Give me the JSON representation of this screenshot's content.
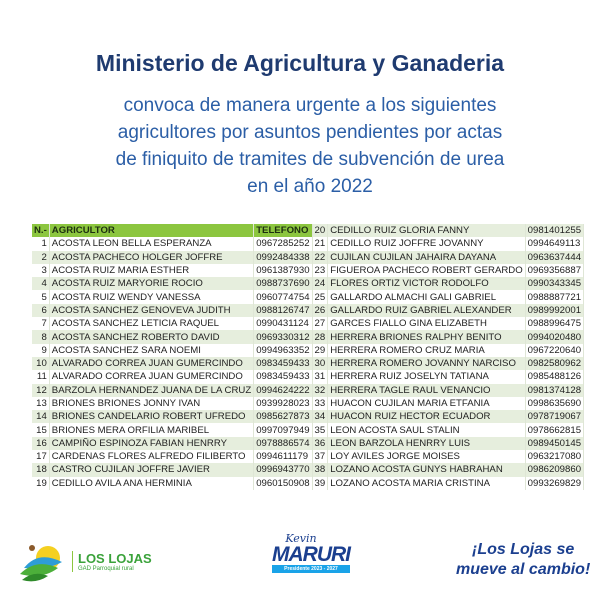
{
  "header": {
    "title": "Ministerio de Agricultura y Ganaderia",
    "subtitle_lines": [
      "convoca de manera urgente a los siguientes",
      "agricultores por asuntos pendientes por actas",
      "de finiquito de tramites de subvención de urea",
      "en el año 2022"
    ]
  },
  "table": {
    "columns": [
      "N.-",
      "AGRICULTOR",
      "TELEFONO"
    ],
    "rows": [
      [
        "1",
        "ACOSTA LEON BELLA ESPERANZA",
        "0967285252"
      ],
      [
        "2",
        "ACOSTA PACHECO HOLGER JOFFRE",
        "0992484338"
      ],
      [
        "3",
        "ACOSTA RUIZ MARIA ESTHER",
        "0961387930"
      ],
      [
        "4",
        "ACOSTA RUIZ MARYORIE ROCIO",
        "0988737690"
      ],
      [
        "5",
        "ACOSTA RUIZ WENDY VANESSA",
        "0960774754"
      ],
      [
        "6",
        "ACOSTA SANCHEZ GENOVEVA JUDITH",
        "0988126747"
      ],
      [
        "7",
        "ACOSTA SANCHEZ LETICIA RAQUEL",
        "0990431124"
      ],
      [
        "8",
        "ACOSTA SANCHEZ ROBERTO DAVID",
        "0969330312"
      ],
      [
        "9",
        "ACOSTA SANCHEZ SARA NOEMI",
        "0994963352"
      ],
      [
        "10",
        "ALVARADO CORREA JUAN GUMERCINDO",
        "0983459433"
      ],
      [
        "11",
        "ALVARADO CORREA JUAN GUMERCINDO",
        "0983459433"
      ],
      [
        "12",
        "BARZOLA HERNANDEZ JUANA DE LA CRUZ",
        "0994624222"
      ],
      [
        "13",
        "BRIONES BRIONES JONNY IVAN",
        "0939928023"
      ],
      [
        "14",
        "BRIONES CANDELARIO ROBERT UFREDO",
        "0985627873"
      ],
      [
        "15",
        "BRIONES MERA ORFILIA MARIBEL",
        "0997097949"
      ],
      [
        "16",
        "CAMPIÑO ESPINOZA FABIAN HENRRY",
        "0978886574"
      ],
      [
        "17",
        "CARDENAS FLORES ALFREDO FILIBERTO",
        "0994611179"
      ],
      [
        "18",
        "CASTRO CUJILAN JOFFRE JAVIER",
        "0996943770"
      ],
      [
        "19",
        "CEDILLO AVILA ANA HERMINIA",
        "0960150908"
      ],
      [
        "20",
        "CEDILLO RUIZ GLORIA FANNY",
        "0981401255"
      ],
      [
        "21",
        "CEDILLO RUIZ JOFFRE JOVANNY",
        "0994649113"
      ],
      [
        "22",
        "CUJILAN CUJILAN JAHAIRA DAYANA",
        "0963637444"
      ],
      [
        "23",
        "FIGUEROA PACHECO ROBERT GERARDO",
        "0969356887"
      ],
      [
        "24",
        "FLORES ORTIZ VICTOR RODOLFO",
        "0990343345"
      ],
      [
        "25",
        "GALLARDO ALMACHI GALI GABRIEL",
        "0988887721"
      ],
      [
        "26",
        "GALLARDO RUIZ GABRIEL ALEXANDER",
        "0989992001"
      ],
      [
        "27",
        "GARCES FIALLO GINA ELIZABETH",
        "0988996475"
      ],
      [
        "28",
        "HERRERA BRIONES RALPHY BENITO",
        "0994020480"
      ],
      [
        "29",
        "HERRERA ROMERO CRUZ MARIA",
        "0967220640"
      ],
      [
        "30",
        "HERRERA ROMERO JOVANNY NARCISO",
        "0982580962"
      ],
      [
        "31",
        "HERRERA RUIZ JOSELYN TATIANA",
        "0985488126"
      ],
      [
        "32",
        "HERRERA TAGLE RAUL VENANCIO",
        "0981374128"
      ],
      [
        "33",
        "HUACON CUJILAN MARIA ETFANIA",
        "0998635690"
      ],
      [
        "34",
        "HUACON RUIZ HECTOR ECUADOR",
        "0978719067"
      ],
      [
        "35",
        "LEON ACOSTA SAUL STALIN",
        "0978662815"
      ],
      [
        "36",
        "LEON BARZOLA HENRRY LUIS",
        "0989450145"
      ],
      [
        "37",
        "LOY AVILES JORGE MOISES",
        "0963217080"
      ],
      [
        "38",
        "LOZANO ACOSTA GUNYS HABRAHAN",
        "0986209860"
      ],
      [
        "39",
        "LOZANO ACOSTA MARIA CRISTINA",
        "0993269829"
      ]
    ]
  },
  "footer": {
    "logo_name": "LOS LOJAS",
    "logo_sub": "GAD Parroquial rural",
    "candidate_first": "Kevin",
    "candidate_last": "MARURI",
    "candidate_term": "Presidente 2023 - 2027",
    "slogan_line1": "¡Los Lojas se",
    "slogan_line2": "mueve al cambio!"
  },
  "colors": {
    "title": "#1f3b70",
    "subtitle": "#2b5ea6",
    "header_green": "#8cc63f",
    "row_alt": "#e6eedd"
  }
}
